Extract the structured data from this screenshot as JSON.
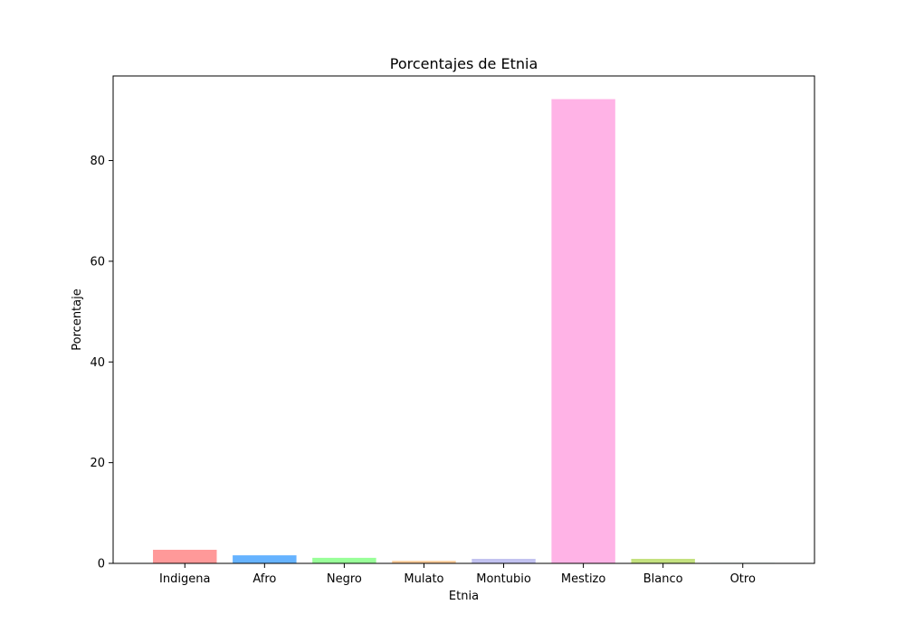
{
  "chart_data": {
    "type": "bar",
    "title": "Porcentajes de Etnia",
    "xlabel": "Etnia",
    "ylabel": "Porcentaje",
    "categories": [
      "Indigena",
      "Afro",
      "Negro",
      "Mulato",
      "Montubio",
      "Mestizo",
      "Blanco",
      "Otro"
    ],
    "values": [
      2.7,
      1.6,
      1.1,
      0.5,
      0.9,
      92.2,
      0.9,
      0.1
    ],
    "colors": [
      "#ff9999",
      "#66b3ff",
      "#99ff99",
      "#ffcc99",
      "#c2c2f0",
      "#ffb3e6",
      "#c4e17f",
      "#76d7c4"
    ],
    "ylim": [
      0,
      96.8
    ],
    "yticks": [
      0,
      20,
      40,
      60,
      80
    ],
    "grid": false,
    "legend": "none"
  }
}
